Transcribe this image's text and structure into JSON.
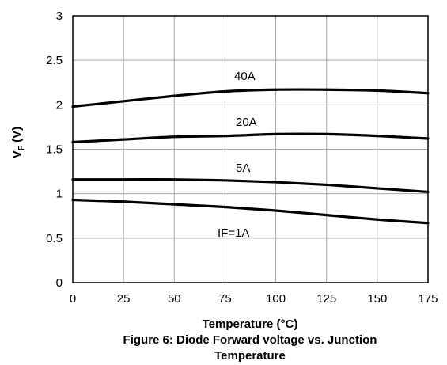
{
  "chart_data": {
    "type": "line",
    "title": "",
    "xlabel": "Temperature (°C)",
    "ylabel_main": "V",
    "ylabel_sub": "F",
    "ylabel_unit": " (V)",
    "xlim": [
      0,
      175
    ],
    "ylim": [
      0,
      3
    ],
    "x_ticks": [
      0,
      25,
      50,
      75,
      100,
      125,
      150,
      175
    ],
    "x_tick_labels": [
      "0",
      "25",
      "50",
      "75",
      "100",
      "125",
      "150",
      "175"
    ],
    "y_ticks": [
      0,
      0.5,
      1,
      1.5,
      2,
      2.5,
      3
    ],
    "y_tick_labels": [
      "0",
      "0.5",
      "1",
      "1.5",
      "2",
      "2.5",
      "3"
    ],
    "grid": true,
    "series": [
      {
        "name": "40A",
        "x": [
          0,
          25,
          50,
          75,
          100,
          125,
          150,
          175
        ],
        "values": [
          1.98,
          2.04,
          2.1,
          2.15,
          2.17,
          2.17,
          2.16,
          2.13
        ]
      },
      {
        "name": "20A",
        "x": [
          0,
          25,
          50,
          75,
          100,
          125,
          150,
          175
        ],
        "values": [
          1.58,
          1.61,
          1.64,
          1.65,
          1.67,
          1.67,
          1.65,
          1.62
        ]
      },
      {
        "name": "5A",
        "x": [
          0,
          25,
          50,
          75,
          100,
          125,
          150,
          175
        ],
        "values": [
          1.16,
          1.16,
          1.16,
          1.15,
          1.13,
          1.1,
          1.06,
          1.02
        ]
      },
      {
        "name": "IF=1A",
        "x": [
          0,
          25,
          50,
          75,
          100,
          125,
          150,
          175
        ],
        "values": [
          0.93,
          0.91,
          0.88,
          0.85,
          0.81,
          0.76,
          0.71,
          0.67
        ]
      }
    ]
  },
  "caption": {
    "line1": "Figure 6: Diode Forward voltage vs. Junction",
    "line2": "Temperature"
  }
}
